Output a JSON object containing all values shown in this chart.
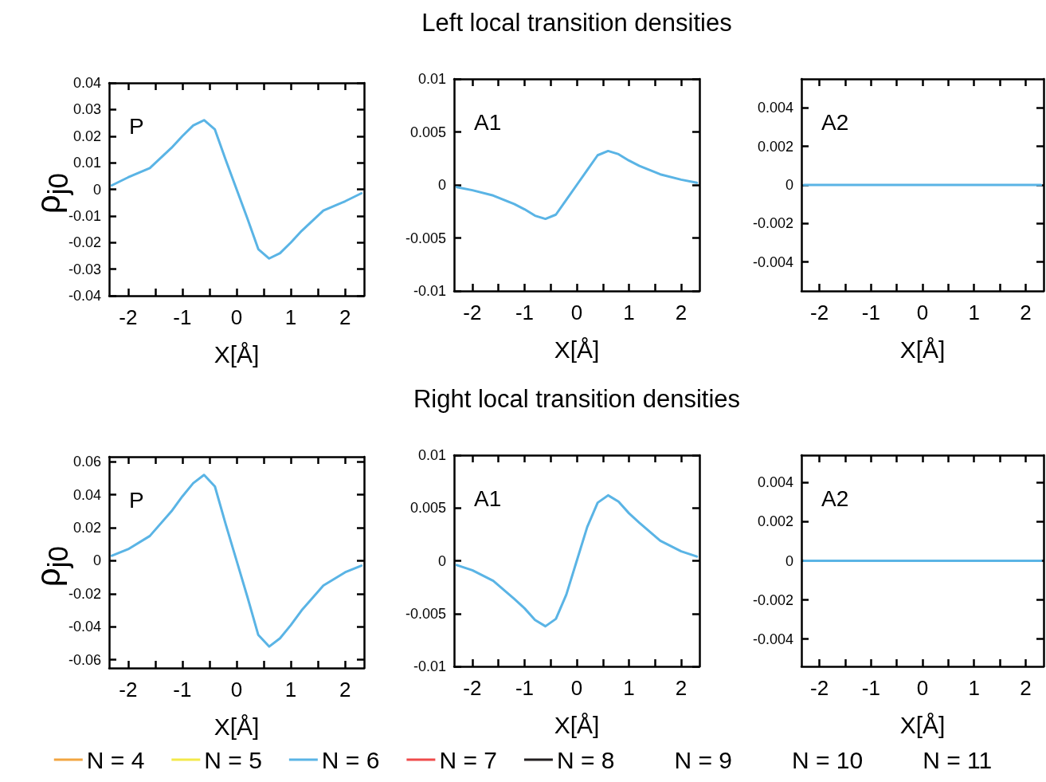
{
  "chart_data": [
    {
      "type": "line",
      "ylabel": "ρ$_{j0}$",
      "xlabel": "X[Å]",
      "annotations": [
        "P"
      ],
      "xlim": [
        -2.35,
        2.35
      ],
      "xticks": [
        -2,
        {
          "value": -1.5,
          "label": null
        },
        -1,
        {
          "value": -0.5,
          "label": null
        },
        0,
        {
          "value": 0.5,
          "label": null
        },
        1,
        {
          "value": 1.5,
          "label": null
        },
        2
      ],
      "ylim": [
        -0.04,
        0.04
      ],
      "yticks": [
        -0.04,
        -0.03,
        -0.02,
        -0.01,
        0,
        0.01,
        0.02,
        0.03,
        0.04
      ],
      "x": [
        -2.3,
        -2,
        -1.6,
        -1.2,
        -1,
        -0.8,
        -0.6,
        -0.4,
        -0.2,
        0,
        0.2,
        0.4,
        0.6,
        0.8,
        1,
        1.2,
        1.6,
        2,
        2.3
      ],
      "series": [
        {
          "color": "#5ab4e5",
          "values": [
            0.0015,
            0.0045,
            0.008,
            0.0156,
            0.02,
            0.024,
            0.026,
            0.0225,
            0.011,
            0,
            -0.011,
            -0.0225,
            -0.026,
            -0.024,
            -0.02,
            -0.0156,
            -0.008,
            -0.0045,
            -0.0015
          ]
        }
      ]
    },
    {
      "type": "line",
      "title": "Left local transition densities",
      "xlabel": "X[Å]",
      "annotations": [
        "A1"
      ],
      "xlim": [
        -2.35,
        2.35
      ],
      "xticks": [
        -2,
        {
          "value": -1.5,
          "label": null
        },
        -1,
        {
          "value": -0.5,
          "label": null
        },
        0,
        {
          "value": 0.5,
          "label": null
        },
        1,
        {
          "value": 1.5,
          "label": null
        },
        2
      ],
      "ylim": [
        -0.01,
        0.01
      ],
      "yticks": [
        -0.01,
        -0.005,
        0,
        0.005,
        0.01
      ],
      "x": [
        -2.3,
        -2,
        -1.6,
        -1.2,
        -1,
        -0.8,
        -0.6,
        -0.4,
        -0.2,
        0,
        0.2,
        0.4,
        0.6,
        0.8,
        1,
        1.2,
        1.6,
        2,
        2.3
      ],
      "series": [
        {
          "color": "#5ab4e5",
          "values": [
            -0.0002,
            -0.0005,
            -0.001,
            -0.0018,
            -0.0023,
            -0.0029,
            -0.0032,
            -0.0028,
            -0.0014,
            0,
            0.0014,
            0.0028,
            0.0032,
            0.0029,
            0.0023,
            0.0018,
            0.001,
            0.0005,
            0.0002
          ]
        }
      ]
    },
    {
      "type": "line",
      "xlabel": "X[Å]",
      "annotations": [
        "A2"
      ],
      "xlim": [
        -2.35,
        2.35
      ],
      "xticks": [
        -2,
        {
          "value": -1.5,
          "label": null
        },
        -1,
        {
          "value": -0.5,
          "label": null
        },
        0,
        {
          "value": 0.5,
          "label": null
        },
        1,
        {
          "value": 1.5,
          "label": null
        },
        2
      ],
      "ylim": [
        -0.0055,
        0.0055
      ],
      "yticks": [
        -0.004,
        -0.002,
        0,
        0.002,
        0.004
      ],
      "x": [
        -2.3,
        0,
        2.3
      ],
      "series": [
        {
          "color": "#5ab4e5",
          "values": [
            0,
            0,
            0
          ]
        }
      ]
    },
    {
      "type": "line",
      "ylabel": "ρ$_{j0}$",
      "xlabel": "X[Å]",
      "annotations": [
        "P"
      ],
      "xlim": [
        -2.35,
        2.35
      ],
      "xticks": [
        -2,
        {
          "value": -1.5,
          "label": null
        },
        -1,
        {
          "value": -0.5,
          "label": null
        },
        0,
        {
          "value": 0.5,
          "label": null
        },
        1,
        {
          "value": 1.5,
          "label": null
        },
        2
      ],
      "ylim": [
        -0.065,
        0.063
      ],
      "yticks": [
        -0.06,
        -0.04,
        -0.02,
        0,
        0.02,
        0.04,
        0.06
      ],
      "x": [
        -2.3,
        -2,
        -1.6,
        -1.2,
        -1,
        -0.8,
        -0.6,
        -0.4,
        -0.2,
        0,
        0.2,
        0.4,
        0.6,
        0.8,
        1,
        1.2,
        1.6,
        2,
        2.3
      ],
      "series": [
        {
          "color": "#5ab4e5",
          "values": [
            0.003,
            0.007,
            0.015,
            0.03,
            0.039,
            0.047,
            0.052,
            0.045,
            0.022,
            0,
            -0.022,
            -0.045,
            -0.052,
            -0.047,
            -0.039,
            -0.03,
            -0.015,
            -0.007,
            -0.003
          ]
        }
      ]
    },
    {
      "type": "line",
      "title": "Right local transition densities",
      "xlabel": "X[Å]",
      "annotations": [
        "A1"
      ],
      "xlim": [
        -2.35,
        2.35
      ],
      "xticks": [
        -2,
        {
          "value": -1.5,
          "label": null
        },
        -1,
        {
          "value": -0.5,
          "label": null
        },
        0,
        {
          "value": 0.5,
          "label": null
        },
        1,
        {
          "value": 1.5,
          "label": null
        },
        2
      ],
      "ylim": [
        -0.01,
        0.01
      ],
      "yticks": [
        -0.01,
        -0.005,
        0,
        0.005,
        0.01
      ],
      "x": [
        -2.3,
        -2,
        -1.6,
        -1.2,
        -1,
        -0.8,
        -0.6,
        -0.4,
        -0.2,
        0,
        0.2,
        0.4,
        0.6,
        0.8,
        1,
        1.2,
        1.6,
        2,
        2.3
      ],
      "series": [
        {
          "color": "#5ab4e5",
          "values": [
            -0.0004,
            -0.0009,
            -0.0019,
            -0.0036,
            -0.0045,
            -0.0056,
            -0.0062,
            -0.0055,
            -0.0032,
            0,
            0.0032,
            0.0055,
            0.0062,
            0.0056,
            0.0045,
            0.0036,
            0.0019,
            0.0009,
            0.0004
          ]
        }
      ]
    },
    {
      "type": "line",
      "xlabel": "X[Å]",
      "annotations": [
        "A2"
      ],
      "legend": "bottom",
      "xlim": [
        -2.35,
        2.35
      ],
      "xticks": [
        -2,
        {
          "value": -1.5,
          "label": null
        },
        -1,
        {
          "value": -0.5,
          "label": null
        },
        0,
        {
          "value": 0.5,
          "label": null
        },
        1,
        {
          "value": 1.5,
          "label": null
        },
        2
      ],
      "ylim": [
        -0.0054,
        0.0054
      ],
      "yticks": [
        -0.004,
        -0.002,
        0,
        0.002,
        0.004
      ],
      "x": [
        -2.3,
        0,
        2.3
      ],
      "series": [
        {
          "name": "N = 4",
          "color": "#f2a541",
          "values": [
            null,
            null,
            null
          ]
        },
        {
          "name": "N = 5",
          "color": "#f3e94a",
          "values": [
            null,
            null,
            null
          ]
        },
        {
          "name": "N = 6",
          "color": "#5ab4e5",
          "values": [
            0,
            0,
            0
          ]
        },
        {
          "name": "N = 7",
          "color": "#ef4b4b",
          "values": [
            null,
            null,
            null
          ]
        },
        {
          "name": "N = 8",
          "color": "#231f20",
          "values": [
            null,
            null,
            null
          ]
        },
        {
          "name": "N = 9",
          "values": [
            null,
            null,
            null
          ]
        },
        {
          "name": "N = 10",
          "values": [
            null,
            null,
            null
          ]
        },
        {
          "name": "N = 11",
          "values": [
            null,
            null,
            null
          ]
        }
      ]
    }
  ]
}
